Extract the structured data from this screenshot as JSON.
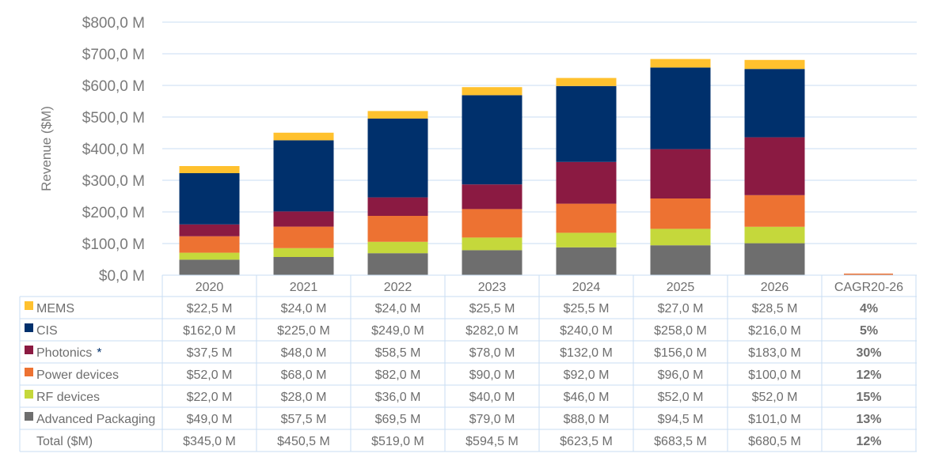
{
  "chart_data": {
    "type": "bar",
    "stacked": true,
    "title": "",
    "xlabel": "",
    "ylabel": "Revenue ($M)",
    "ylim": [
      0,
      800
    ],
    "yticks": [
      "$0,0 M",
      "$100,0 M",
      "$200,0 M",
      "$300,0 M",
      "$400,0 M",
      "$500,0 M",
      "$600,0 M",
      "$700,0 M",
      "$800,0 M"
    ],
    "grid": true,
    "legend": "data-table",
    "categories": [
      "2020",
      "2021",
      "2022",
      "2023",
      "2024",
      "2025",
      "2026"
    ],
    "extra_column": "CAGR20-26",
    "series": [
      {
        "name": "MEMS",
        "color": "#FFC12E",
        "values": [
          22.5,
          24,
          24,
          25.5,
          25.5,
          27,
          28.5
        ],
        "labels": [
          "$22,5 M",
          "$24,0 M",
          "$24,0 M",
          "$25,5 M",
          "$25,5 M",
          "$27,0 M",
          "$28,5 M"
        ],
        "cagr": "4%"
      },
      {
        "name": "CIS",
        "color": "#00306C",
        "values": [
          162,
          225,
          249,
          282,
          240,
          258,
          216
        ],
        "labels": [
          "$162,0 M",
          "$225,0 M",
          "$249,0 M",
          "$282,0 M",
          "$240,0 M",
          "$258,0 M",
          "$216,0 M"
        ],
        "cagr": "5%"
      },
      {
        "name": "Photonics",
        "marker": "*",
        "color": "#8B1A42",
        "values": [
          37.5,
          48,
          58.5,
          78,
          132,
          156,
          183
        ],
        "labels": [
          "$37,5 M",
          "$48,0 M",
          "$58,5 M",
          "$78,0 M",
          "$132,0 M",
          "$156,0 M",
          "$183,0 M"
        ],
        "cagr": "30%"
      },
      {
        "name": "Power devices",
        "color": "#ED7232",
        "values": [
          52,
          68,
          82,
          90,
          92,
          96,
          100
        ],
        "labels": [
          "$52,0 M",
          "$68,0 M",
          "$82,0 M",
          "$90,0 M",
          "$92,0 M",
          "$96,0 M",
          "$100,0 M"
        ],
        "cagr": "12%"
      },
      {
        "name": "RF devices",
        "color": "#C5D83B",
        "values": [
          22,
          28,
          36,
          40,
          46,
          52,
          52
        ],
        "labels": [
          "$22,0 M",
          "$28,0 M",
          "$36,0 M",
          "$40,0 M",
          "$46,0 M",
          "$52,0 M",
          "$52,0 M"
        ],
        "cagr": "15%"
      },
      {
        "name": "Advanced Packaging",
        "color": "#6E6E6E",
        "values": [
          49,
          57.5,
          69.5,
          79,
          88,
          94.5,
          101
        ],
        "labels": [
          "$49,0 M",
          "$57,5 M",
          "$69,5 M",
          "$79,0 M",
          "$88,0 M",
          "$94,5 M",
          "$101,0 M"
        ],
        "cagr": "13%"
      }
    ],
    "total": {
      "name": "Total ($M)",
      "labels": [
        "$345,0 M",
        "$450,5 M",
        "$519,0 M",
        "$594,5 M",
        "$623,5 M",
        "$683,5 M",
        "$680,5 M"
      ],
      "cagr": "12%"
    }
  }
}
